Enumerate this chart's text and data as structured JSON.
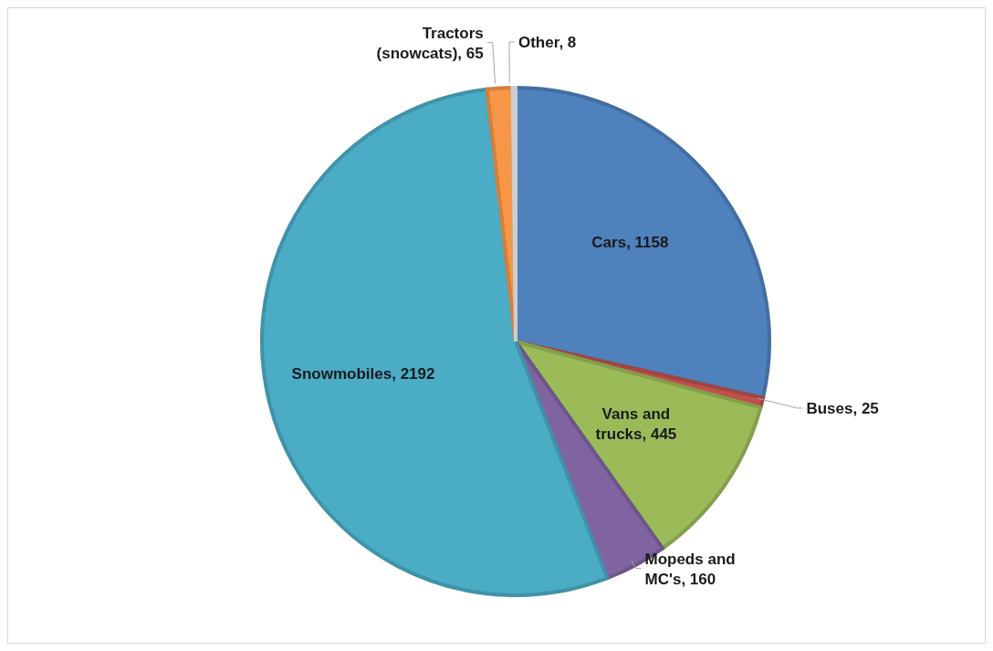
{
  "chart_data": {
    "type": "pie",
    "categories": [
      "Cars",
      "Buses",
      "Vans and trucks",
      "Mopeds and MC's",
      "Snowmobiles",
      "Tractors (snowcats)",
      "Other"
    ],
    "values": [
      1158,
      25,
      445,
      160,
      2192,
      65,
      8
    ],
    "colors": [
      "#4f81bd",
      "#c0504d",
      "#9bbb59",
      "#8064a2",
      "#4bacc6",
      "#f79646",
      "#f2f2f2"
    ],
    "value_labels": [
      ", 1158",
      ", 25",
      ", 445",
      ", 160",
      ", 2192",
      ", 65",
      ", 8"
    ],
    "legend": false
  }
}
